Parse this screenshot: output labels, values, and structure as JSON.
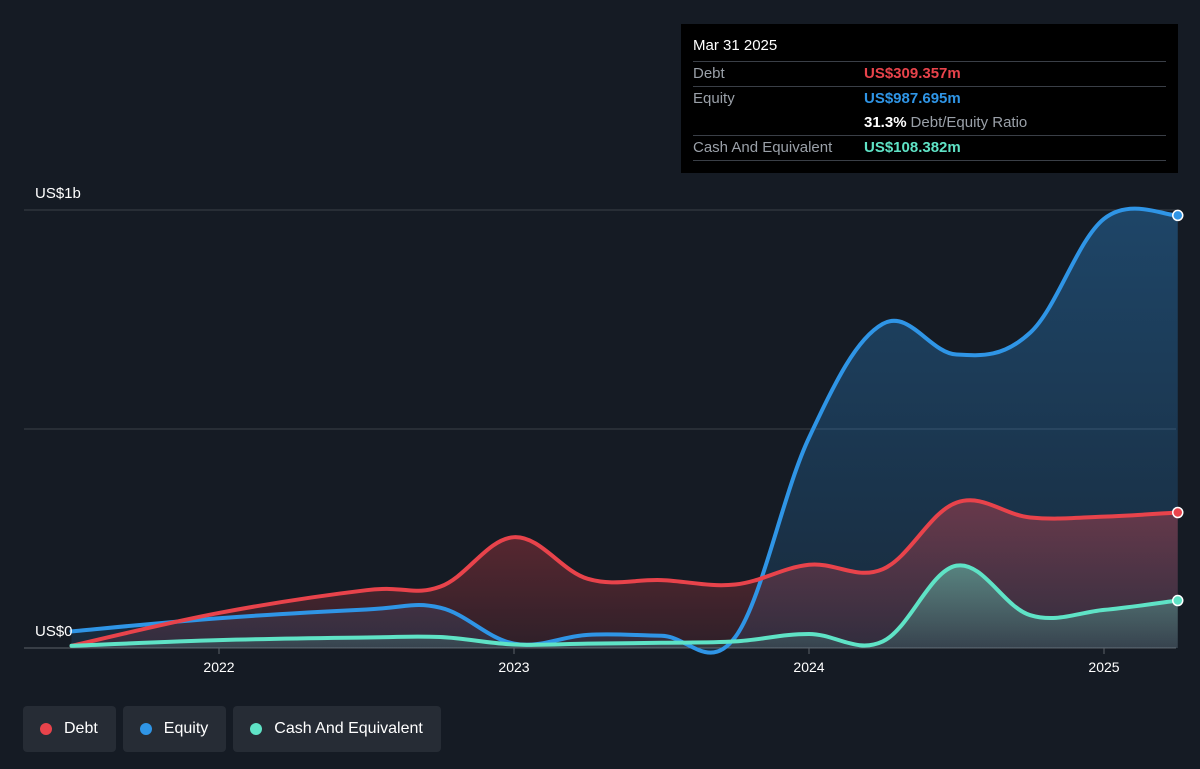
{
  "chart_data": {
    "type": "area",
    "ylabel_top": "US$1b",
    "ylabel_bottom": "US$0",
    "ylim": [
      0,
      1000
    ],
    "unit": "US$m",
    "x_ticks": [
      "2022",
      "2023",
      "2024",
      "2025"
    ],
    "grid": true,
    "series": [
      {
        "name": "Debt",
        "color": "#e8434b",
        "x": [
          2021.5,
          2022.0,
          2022.5,
          2022.75,
          2023.0,
          2023.25,
          2023.5,
          2023.75,
          2024.0,
          2024.25,
          2024.5,
          2024.75,
          2025.0,
          2025.25
        ],
        "values": [
          5,
          80,
          132,
          140,
          253,
          158,
          155,
          145,
          190,
          180,
          332,
          298,
          300,
          309.357
        ]
      },
      {
        "name": "Equity",
        "color": "#2f95e6",
        "x": [
          2021.5,
          2022.0,
          2022.5,
          2022.75,
          2023.0,
          2023.25,
          2023.5,
          2023.75,
          2024.0,
          2024.25,
          2024.5,
          2024.75,
          2025.0,
          2025.25
        ],
        "values": [
          38,
          68,
          88,
          92,
          10,
          30,
          28,
          25,
          480,
          740,
          670,
          720,
          980,
          987.695
        ]
      },
      {
        "name": "Cash And Equivalent",
        "color": "#5fe3c6",
        "x": [
          2021.5,
          2022.0,
          2022.5,
          2022.75,
          2023.0,
          2023.25,
          2023.5,
          2023.75,
          2024.0,
          2024.25,
          2024.5,
          2024.75,
          2025.0,
          2025.25
        ],
        "values": [
          5,
          18,
          24,
          25,
          8,
          10,
          12,
          15,
          32,
          15,
          188,
          75,
          87,
          108.382
        ]
      }
    ]
  },
  "tooltip": {
    "date": "Mar 31 2025",
    "debt_label": "Debt",
    "debt_value": "US$309.357m",
    "equity_label": "Equity",
    "equity_value": "US$987.695m",
    "ratio_value": "31.3%",
    "ratio_label": "Debt/Equity Ratio",
    "cash_label": "Cash And Equivalent",
    "cash_value": "US$108.382m"
  },
  "legend": {
    "debt": "Debt",
    "equity": "Equity",
    "cash": "Cash And Equivalent"
  }
}
